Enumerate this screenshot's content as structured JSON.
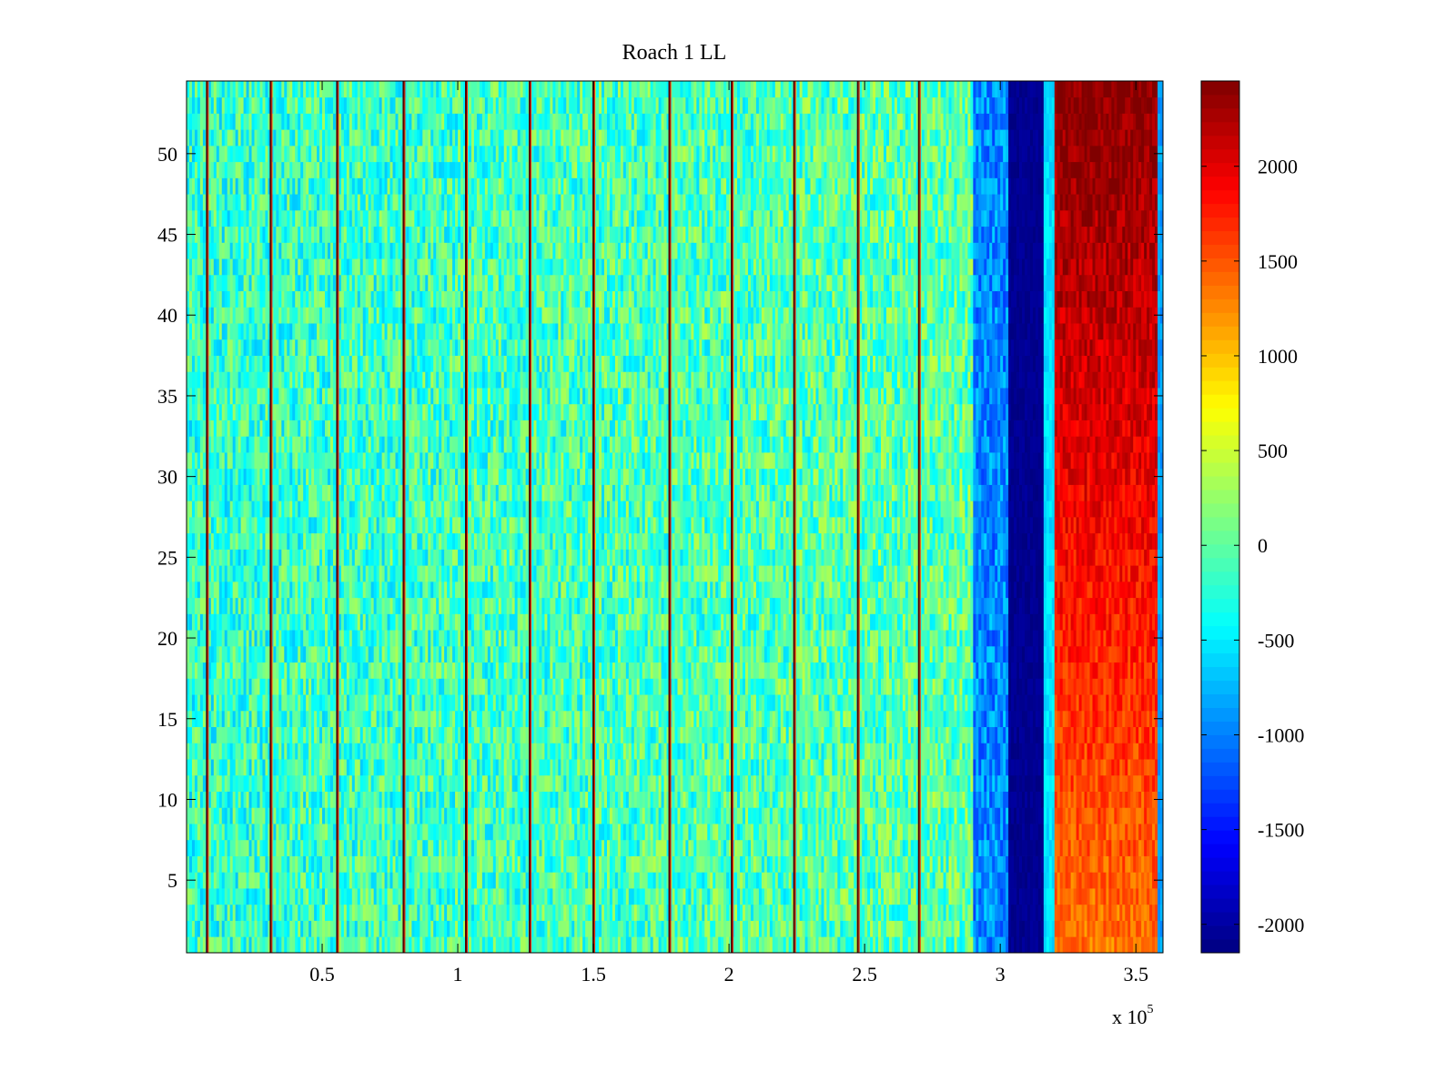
{
  "chart_data": {
    "type": "heatmap",
    "title": "Roach 1 LL",
    "xlabel": "",
    "ylabel": "",
    "x_exponent_label": "x 10",
    "x_exponent_power": "5",
    "x_multiplier": 100000,
    "xlim": [
      0,
      3.6
    ],
    "ylim": [
      0.5,
      54.5
    ],
    "x_ticks": [
      0.5,
      1,
      1.5,
      2,
      2.5,
      3,
      3.5
    ],
    "x_tick_labels": [
      "0.5",
      "1",
      "1.5",
      "2",
      "2.5",
      "3",
      "3.5"
    ],
    "y_ticks": [
      5,
      10,
      15,
      20,
      25,
      30,
      35,
      40,
      45,
      50
    ],
    "y_tick_labels": [
      "5",
      "10",
      "15",
      "20",
      "25",
      "30",
      "35",
      "40",
      "45",
      "50"
    ],
    "rows": 54,
    "colormap": "jet",
    "colorbar": {
      "range": [
        -2150,
        2450
      ],
      "ticks": [
        -2000,
        -1500,
        -1000,
        -500,
        0,
        500,
        1000,
        1500,
        2000
      ],
      "tick_labels": [
        "-2000",
        "-1500",
        "-1000",
        "-500",
        "0",
        "500",
        "1000",
        "1500",
        "2000"
      ],
      "position": "right"
    },
    "background_value_range": [
      -700,
      300
    ],
    "vertical_spike_lines_x": [
      0.075,
      0.31,
      0.555,
      0.8,
      1.03,
      1.265,
      1.5,
      1.78,
      2.01,
      2.24,
      2.475,
      2.7
    ],
    "regions": [
      {
        "label": "noise band",
        "x_range": [
          0,
          2.9
        ],
        "typical_value": -250
      },
      {
        "label": "blue fringe",
        "x_range": [
          2.9,
          3.03
        ],
        "typical_value": -900
      },
      {
        "label": "low band",
        "x_range": [
          3.03,
          3.16
        ],
        "typical_value": -2150
      },
      {
        "label": "cyan gap",
        "x_range": [
          3.16,
          3.2
        ],
        "typical_value": -600
      },
      {
        "label": "high band",
        "x_range": [
          3.2,
          3.58
        ],
        "typical_value_top": 2450,
        "typical_value_bottom": 1400
      },
      {
        "label": "right edge",
        "x_range": [
          3.58,
          3.6
        ],
        "typical_value": -1000
      }
    ]
  }
}
